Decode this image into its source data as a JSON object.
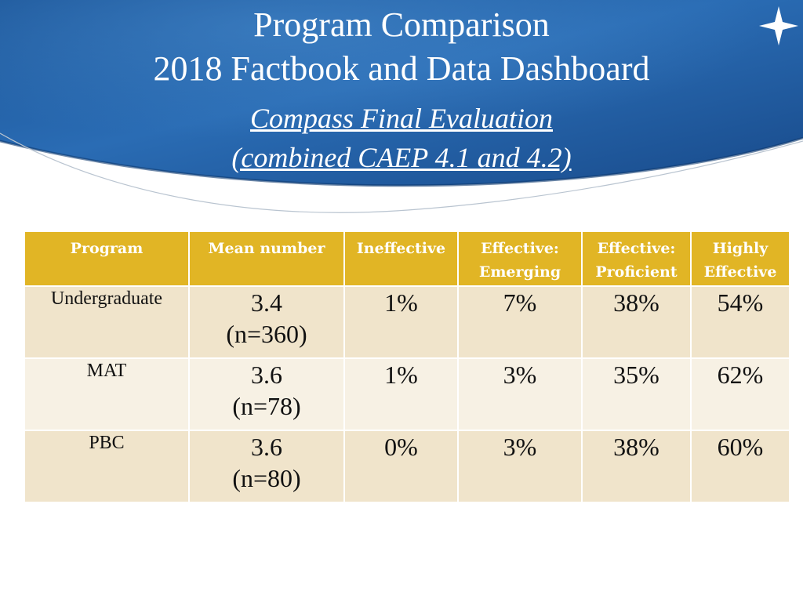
{
  "slide": {
    "title_line1": "Program Comparison",
    "title_line2": "2018 Factbook and Data Dashboard",
    "subtitle_line1": "Compass Final Evaluation",
    "subtitle_line2": "(combined CAEP 4.1 and 4.2)",
    "colors": {
      "banner": "#1d5ba0",
      "banner_dark": "#123f7a",
      "header_gold": "#e1b525",
      "row_tan": "#f0e4cb",
      "row_cream": "#f7f1e4"
    },
    "decor_icon": "star-icon"
  },
  "table": {
    "headers": [
      "Program",
      "Mean number",
      "Ineffective",
      "Effective: Emerging",
      "Effective: Proficient",
      "Highly Effective"
    ],
    "rows": [
      {
        "program": "Undergraduate",
        "mean": "3.4",
        "n": "(n=360)",
        "ineffective": "1%",
        "emerging": "7%",
        "proficient": "38%",
        "highly": "54%"
      },
      {
        "program": "MAT",
        "mean": "3.6",
        "n": "(n=78)",
        "ineffective": "1%",
        "emerging": "3%",
        "proficient": "35%",
        "highly": "62%"
      },
      {
        "program": "PBC",
        "mean": "3.6",
        "n": "(n=80)",
        "ineffective": "0%",
        "emerging": "3%",
        "proficient": "38%",
        "highly": "60%"
      }
    ]
  }
}
